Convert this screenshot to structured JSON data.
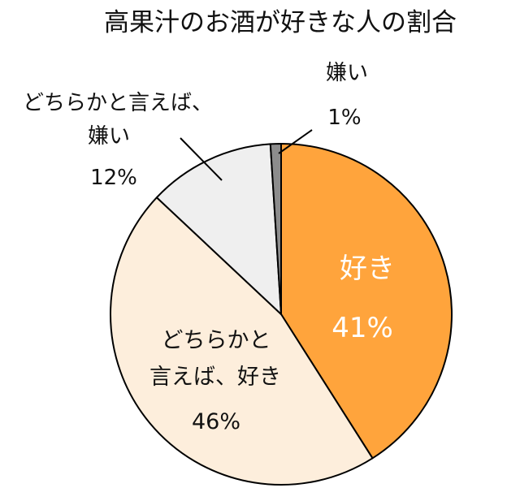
{
  "chart_data": {
    "type": "pie",
    "title": "高果汁のお酒が好きな人の割合",
    "slices": [
      {
        "label": "好き",
        "value": 41,
        "value_text": "41%",
        "color": "#FFA43C"
      },
      {
        "label": "どちらかと言えば、好き",
        "label_lines": [
          "どちらかと",
          "言えば、好き"
        ],
        "value": 46,
        "value_text": "46%",
        "color": "#FDEEDC"
      },
      {
        "label": "どちらかと言えば、嫌い",
        "label_lines": [
          "どちらかと言えば、",
          "嫌い"
        ],
        "value": 12,
        "value_text": "12%",
        "color": "#EFEFEF"
      },
      {
        "label": "嫌い",
        "label_lines": [
          "嫌い"
        ],
        "value": 1,
        "value_text": "1%",
        "color": "#8C8C8C"
      }
    ],
    "start": "12 o'clock",
    "direction": "clockwise",
    "legend": "none"
  }
}
